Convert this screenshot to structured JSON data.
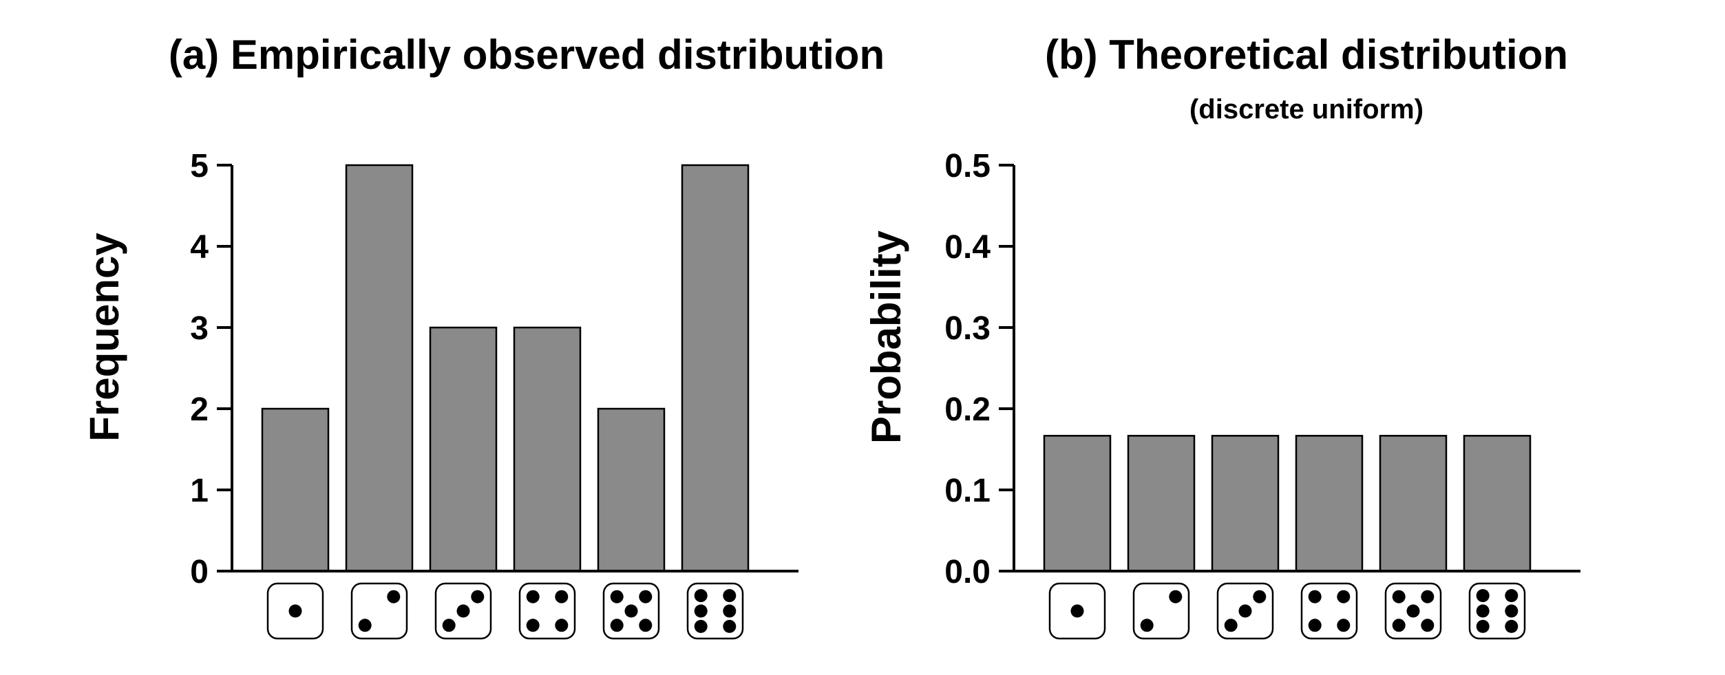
{
  "chart_data": [
    {
      "type": "bar",
      "title": "(a) Empirically observed distribution",
      "subtitle": "",
      "xlabel": "",
      "ylabel": "Frequency",
      "categories": [
        1,
        2,
        3,
        4,
        5,
        6
      ],
      "category_icons": [
        "die-face-1",
        "die-face-2",
        "die-face-3",
        "die-face-4",
        "die-face-5",
        "die-face-6"
      ],
      "values": [
        2,
        5,
        3,
        3,
        2,
        5
      ],
      "ylim": [
        0,
        5
      ],
      "yticks": [
        0,
        1,
        2,
        3,
        4,
        5
      ],
      "ytick_labels": [
        "0",
        "1",
        "2",
        "3",
        "4",
        "5"
      ],
      "bar_color": "#8a8a8a",
      "grid": false
    },
    {
      "type": "bar",
      "title": "(b) Theoretical distribution",
      "subtitle": "(discrete uniform)",
      "xlabel": "",
      "ylabel": "Probability",
      "categories": [
        1,
        2,
        3,
        4,
        5,
        6
      ],
      "category_icons": [
        "die-face-1",
        "die-face-2",
        "die-face-3",
        "die-face-4",
        "die-face-5",
        "die-face-6"
      ],
      "values": [
        0.1667,
        0.1667,
        0.1667,
        0.1667,
        0.1667,
        0.1667
      ],
      "ylim": [
        0,
        0.5
      ],
      "yticks": [
        0,
        0.1,
        0.2,
        0.3,
        0.4,
        0.5
      ],
      "ytick_labels": [
        "0.0",
        "0.1",
        "0.2",
        "0.3",
        "0.4",
        "0.5"
      ],
      "bar_color": "#8a8a8a",
      "grid": false
    }
  ]
}
